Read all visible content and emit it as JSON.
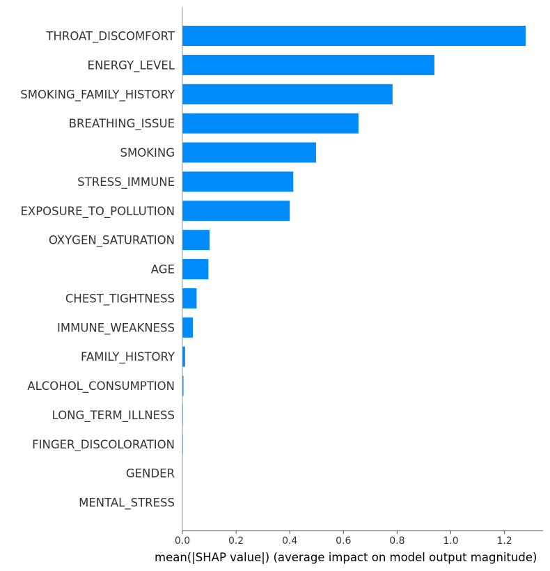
{
  "chart_data": {
    "type": "bar",
    "orientation": "horizontal",
    "categories": [
      "THROAT_DISCOMFORT",
      "ENERGY_LEVEL",
      "SMOKING_FAMILY_HISTORY",
      "BREATHING_ISSUE",
      "SMOKING",
      "STRESS_IMMUNE",
      "EXPOSURE_TO_POLLUTION",
      "OXYGEN_SATURATION",
      "AGE",
      "CHEST_TIGHTNESS",
      "IMMUNE_WEAKNESS",
      "FAMILY_HISTORY",
      "ALCOHOL_CONSUMPTION",
      "LONG_TERM_ILLNESS",
      "FINGER_DISCOLORATION",
      "GENDER",
      "MENTAL_STRESS"
    ],
    "values": [
      1.279,
      0.939,
      0.783,
      0.656,
      0.498,
      0.413,
      0.4,
      0.101,
      0.097,
      0.053,
      0.039,
      0.01,
      0.004,
      0.002,
      0.002,
      0.0,
      0.0
    ],
    "xlabel": "mean(|SHAP value|) (average impact on model output magnitude)",
    "xticks": [
      0.0,
      0.2,
      0.4,
      0.6,
      0.8,
      1.0,
      1.2
    ],
    "xtick_labels": [
      "0.0",
      "0.2",
      "0.4",
      "0.6",
      "0.8",
      "1.0",
      "1.2"
    ],
    "xlim": [
      0,
      1.345
    ],
    "bar_color": "#008bfb",
    "grid": false
  }
}
